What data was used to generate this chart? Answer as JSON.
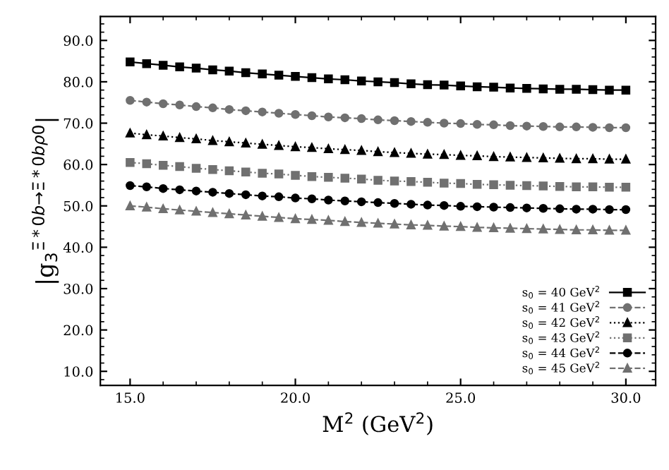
{
  "chart_data": {
    "type": "line",
    "xlabel": "M$^{2}$ (GeV$^{2}$)",
    "ylabel": "|g$_{3}$$^{Ξ*0b→Ξ*0bρ0}$|",
    "x": [
      15.0,
      15.5,
      16.0,
      16.5,
      17.0,
      17.5,
      18.0,
      18.5,
      19.0,
      19.5,
      20.0,
      20.5,
      21.0,
      21.5,
      22.0,
      22.5,
      23.0,
      23.5,
      24.0,
      24.5,
      25.0,
      25.5,
      26.0,
      26.5,
      27.0,
      27.5,
      28.0,
      28.5,
      29.0,
      29.5,
      30.0
    ],
    "series": [
      {
        "name": "s$_{0}$ = 40 GeV$^{2}$",
        "color": "#000000",
        "marker": "square",
        "line_style": "solid",
        "values": [
          84.8,
          84.4,
          84.0,
          83.6,
          83.3,
          82.9,
          82.6,
          82.2,
          81.9,
          81.6,
          81.3,
          81.0,
          80.7,
          80.5,
          80.2,
          80.0,
          79.8,
          79.5,
          79.3,
          79.2,
          79.0,
          78.8,
          78.7,
          78.5,
          78.4,
          78.3,
          78.2,
          78.2,
          78.1,
          78.0,
          78.0
        ]
      },
      {
        "name": "s$_{0}$ = 41 GeV$^{2}$",
        "color": "#707070",
        "marker": "circle",
        "line_style": "dashed",
        "values": [
          75.5,
          75.1,
          74.7,
          74.4,
          74.0,
          73.7,
          73.3,
          73.0,
          72.7,
          72.4,
          72.1,
          71.8,
          71.5,
          71.3,
          71.1,
          70.8,
          70.6,
          70.4,
          70.2,
          70.0,
          69.9,
          69.7,
          69.6,
          69.4,
          69.3,
          69.2,
          69.1,
          69.1,
          69.0,
          68.9,
          68.9
        ]
      },
      {
        "name": "s$_{0}$ = 42 GeV$^{2}$",
        "color": "#000000",
        "marker": "triangle",
        "line_style": "dotted",
        "values": [
          67.6,
          67.2,
          66.9,
          66.5,
          66.2,
          65.8,
          65.5,
          65.2,
          64.9,
          64.6,
          64.3,
          64.1,
          63.8,
          63.6,
          63.4,
          63.1,
          62.9,
          62.7,
          62.5,
          62.4,
          62.2,
          62.1,
          61.9,
          61.8,
          61.7,
          61.6,
          61.5,
          61.4,
          61.4,
          61.3,
          61.3
        ]
      },
      {
        "name": "s$_{0}$ = 43 GeV$^{2}$",
        "color": "#707070",
        "marker": "square",
        "line_style": "dotted",
        "values": [
          60.5,
          60.2,
          59.8,
          59.5,
          59.1,
          58.8,
          58.5,
          58.2,
          57.9,
          57.7,
          57.4,
          57.1,
          56.9,
          56.7,
          56.5,
          56.2,
          56.0,
          55.9,
          55.7,
          55.5,
          55.4,
          55.2,
          55.1,
          55.0,
          54.9,
          54.8,
          54.7,
          54.6,
          54.6,
          54.5,
          54.5
        ]
      },
      {
        "name": "s$_{0}$ = 44 GeV$^{2}$",
        "color": "#000000",
        "marker": "circle",
        "line_style": "dashed",
        "values": [
          54.9,
          54.6,
          54.2,
          53.9,
          53.6,
          53.3,
          53.0,
          52.7,
          52.4,
          52.2,
          51.9,
          51.7,
          51.4,
          51.2,
          51.0,
          50.8,
          50.6,
          50.4,
          50.2,
          50.1,
          49.9,
          49.8,
          49.7,
          49.6,
          49.5,
          49.4,
          49.3,
          49.2,
          49.2,
          49.1,
          49.1
        ]
      },
      {
        "name": "s$_{0}$ = 45 GeV$^{2}$",
        "color": "#707070",
        "marker": "triangle",
        "line_style": "dashed",
        "values": [
          50.0,
          49.7,
          49.3,
          49.0,
          48.7,
          48.4,
          48.1,
          47.8,
          47.5,
          47.2,
          46.9,
          46.7,
          46.5,
          46.2,
          46.0,
          45.8,
          45.6,
          45.4,
          45.3,
          45.1,
          45.0,
          44.8,
          44.7,
          44.6,
          44.5,
          44.4,
          44.3,
          44.2,
          44.2,
          44.1,
          44.1
        ]
      }
    ],
    "xlim": [
      14.1,
      30.9
    ],
    "ylim": [
      6.6,
      95.8
    ],
    "xticks": [
      {
        "value": 15,
        "label": "15.0"
      },
      {
        "value": 20,
        "label": "20.0"
      },
      {
        "value": 25,
        "label": "25.0"
      },
      {
        "value": 30,
        "label": "30.0"
      }
    ],
    "yticks": [
      {
        "value": 10,
        "label": "10.0"
      },
      {
        "value": 20,
        "label": "20.0"
      },
      {
        "value": 30,
        "label": "30.0"
      },
      {
        "value": 40,
        "label": "40.0"
      },
      {
        "value": 50,
        "label": "50.0"
      },
      {
        "value": 60,
        "label": "60.0"
      },
      {
        "value": 70,
        "label": "70.0"
      },
      {
        "value": 80,
        "label": "80.0"
      },
      {
        "value": 90,
        "label": "90.0"
      }
    ],
    "grid": false,
    "legend": "lower right"
  }
}
